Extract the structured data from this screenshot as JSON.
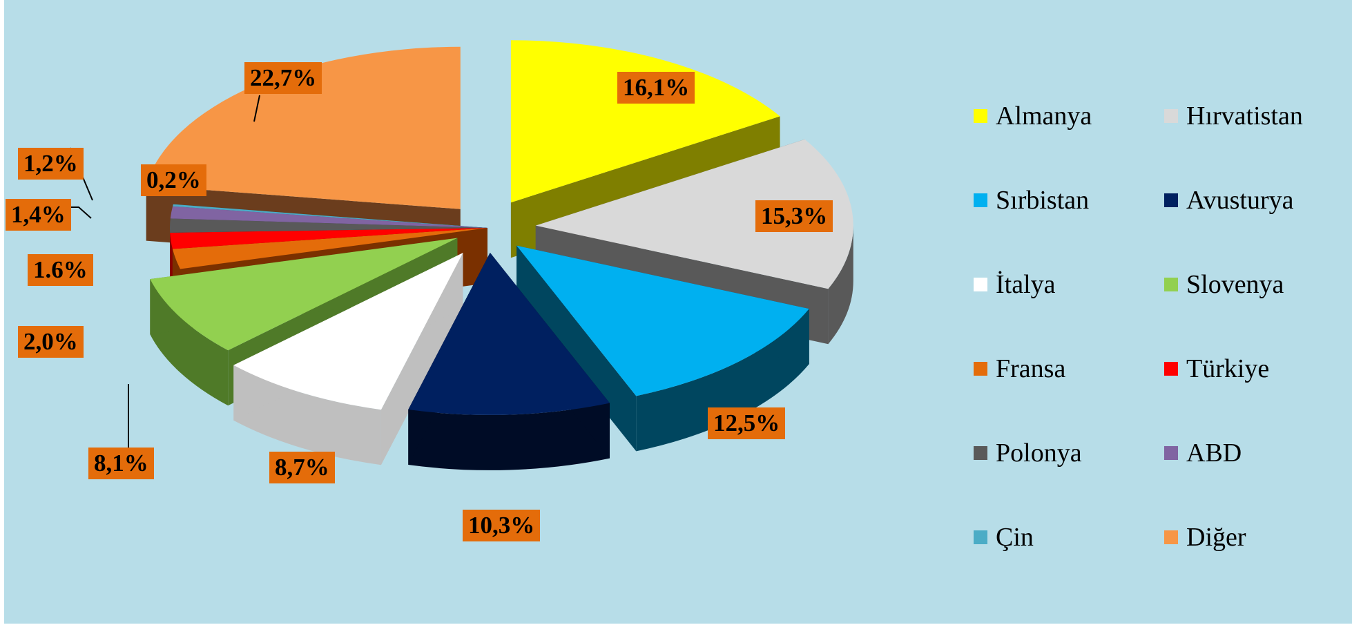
{
  "chart_data": {
    "type": "pie",
    "title": "",
    "legend_position": "right",
    "slices": [
      {
        "name": "Almanya",
        "label": "16,1%",
        "value": 16.1,
        "color": "#ffff00",
        "side": "#7f7f00"
      },
      {
        "name": "Hırvatistan",
        "label": "15,3%",
        "value": 15.3,
        "color": "#d9d9d9",
        "side": "#595959"
      },
      {
        "name": "Sırbistan",
        "label": "12,5%",
        "value": 12.5,
        "color": "#00b0f0",
        "side": "#00465f"
      },
      {
        "name": "Avusturya",
        "label": "10,3%",
        "value": 10.3,
        "color": "#002060",
        "side": "#000c26"
      },
      {
        "name": "İtalya",
        "label": "8,7%",
        "value": 8.7,
        "color": "#ffffff",
        "side": "#bfbfbf"
      },
      {
        "name": "Slovenya",
        "label": "8,1%",
        "value": 8.1,
        "color": "#92d050",
        "side": "#4f7a28"
      },
      {
        "name": "Fransa",
        "label": "2,0%",
        "value": 2.0,
        "color": "#e46c0a",
        "side": "#7a3000"
      },
      {
        "name": "Türkiye",
        "label": "1.6%",
        "value": 1.6,
        "color": "#ff0000",
        "side": "#8a0000"
      },
      {
        "name": "Polonya",
        "label": "1,4%",
        "value": 1.4,
        "color": "#595959",
        "side": "#262626"
      },
      {
        "name": "ABD",
        "label": "1,2%",
        "value": 1.2,
        "color": "#8064a2",
        "side": "#3d2d52"
      },
      {
        "name": "Çin",
        "label": "0,2%",
        "value": 0.2,
        "color": "#4bacc6",
        "side": "#215968"
      },
      {
        "name": "Diğer",
        "label": "22,7%",
        "value": 22.7,
        "color": "#f79646",
        "side": "#6b3d1d"
      }
    ],
    "label_background": "#e46c0a",
    "background": "#b7dde8"
  }
}
